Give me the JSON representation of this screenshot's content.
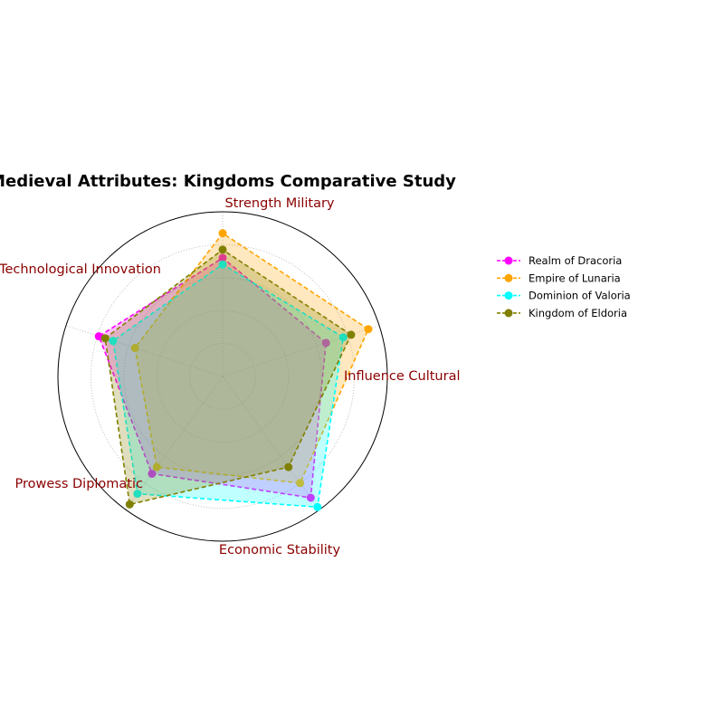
{
  "chart_data": {
    "type": "radar",
    "title": "Medieval Attributes: Kingdoms Comparative Study",
    "axes": [
      "Influence Cultural",
      "Strength Military",
      "Technological Innovation",
      "Prowess Diplomatic",
      "Economic Stability"
    ],
    "rlim": [
      0,
      1
    ],
    "grid": true,
    "legend_position": "right",
    "series": [
      {
        "name": "Realm of Dracoria",
        "color": "#ff00ff",
        "values": [
          0.66,
          0.72,
          0.79,
          0.73,
          0.91
        ]
      },
      {
        "name": "Empire of Lunaria",
        "color": "#ffa500",
        "values": [
          0.93,
          0.87,
          0.56,
          0.68,
          0.8
        ]
      },
      {
        "name": "Dominion of Valoria",
        "color": "#00ffff",
        "values": [
          0.77,
          0.68,
          0.7,
          0.88,
          0.98
        ]
      },
      {
        "name": "Kingdom of Eldoria",
        "color": "#808000",
        "values": [
          0.82,
          0.77,
          0.75,
          0.96,
          0.68
        ]
      }
    ]
  }
}
